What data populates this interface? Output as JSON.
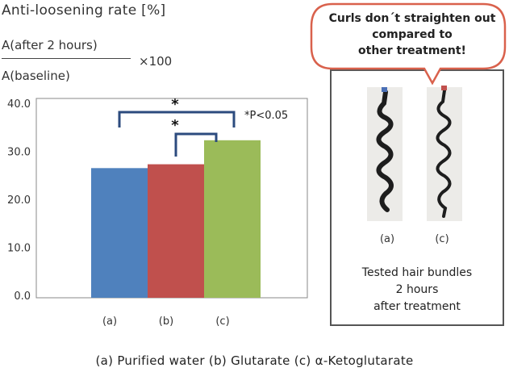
{
  "chart_data": {
    "type": "bar",
    "title": "Anti-loosening rate [%]",
    "formula": {
      "numerator": "A(after 2 hours)",
      "denominator": "A(baseline)",
      "multiplier": "×100"
    },
    "categories": [
      "(a)",
      "(b)",
      "(c)"
    ],
    "values": [
      26.5,
      27.3,
      32.3
    ],
    "colors": [
      "#4f81bd",
      "#c0504d",
      "#9bbb59"
    ],
    "ylim": [
      0,
      40
    ],
    "yticks": [
      "0.0",
      "10.0",
      "20.0",
      "30.0",
      "40.0"
    ],
    "significance_note": "*P<0.05",
    "significance_marks": [
      "*",
      "*"
    ],
    "legend": "(a) Purified water (b) Glutarate (c) α-Ketoglutarate"
  },
  "panel": {
    "callout": [
      "Curls don´t straighten out",
      "compared to",
      "other treatment!"
    ],
    "hair_labels": [
      "(a)",
      "(c)"
    ],
    "caption": [
      "Tested hair bundles",
      "2 hours",
      "after treatment"
    ]
  }
}
